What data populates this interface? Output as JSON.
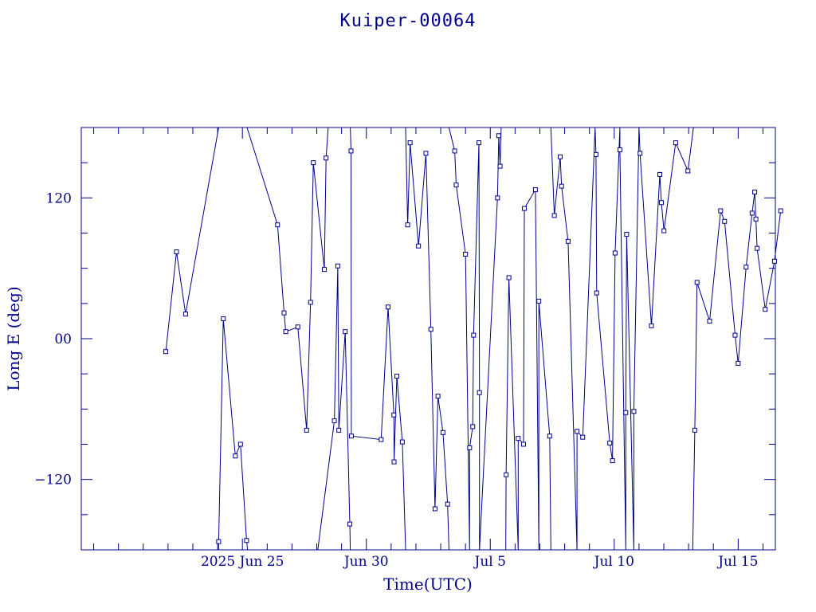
{
  "chart_data": {
    "type": "line",
    "title": "Kuiper-00064",
    "xlabel": "Time(UTC)",
    "ylabel": "Long E (deg)",
    "color": "#00008b",
    "x_unit": "day (2025)",
    "xlim": [
      "2025-06-18T12:00",
      "2025-07-16T12:00"
    ],
    "ylim": [
      -180,
      180
    ],
    "y_ticks": [
      -120,
      0,
      120
    ],
    "y_tick_labels": [
      "−120",
      "00",
      "120"
    ],
    "x_ticks": [
      "2025-06-25",
      "2025-06-30",
      "2025-07-05",
      "2025-07-10",
      "2025-07-15"
    ],
    "x_tick_labels": [
      "2025 Jun 25",
      "Jun 30",
      "Jul  5",
      "Jul 10",
      "Jul 15"
    ],
    "series": [
      {
        "values": [
          [
            "2025-06-21T21:50",
            -11
          ],
          [
            "2025-06-22T08:10",
            74
          ],
          [
            "2025-06-22T17:00",
            21
          ],
          [
            "2025-06-24T01:00",
            180
          ],
          [
            "2025-06-24T01:00",
            -180
          ],
          [
            "2025-06-24T01:00",
            -173
          ],
          [
            "2025-06-24T05:30",
            17
          ],
          [
            "2025-06-24T17:10",
            -100
          ],
          [
            "2025-06-24T22:10",
            -90
          ],
          [
            "2025-06-25T04:00",
            -172
          ],
          [
            "2025-06-25T05:00",
            -180
          ],
          [
            "2025-06-25T04:30",
            180
          ],
          [
            "2025-06-26T10:00",
            97
          ],
          [
            "2025-06-26T16:20",
            22
          ],
          [
            "2025-06-26T18:00",
            6
          ],
          [
            "2025-06-27T05:40",
            10
          ],
          [
            "2025-06-27T14:10",
            -78
          ],
          [
            "2025-06-27T18:00",
            31
          ],
          [
            "2025-06-27T20:40",
            150
          ],
          [
            "2025-06-28T07:20",
            59
          ],
          [
            "2025-06-28T09:00",
            154
          ],
          [
            "2025-06-28T11:00",
            180
          ],
          [
            "2025-06-28T01:00",
            -180
          ],
          [
            "2025-06-28T17:00",
            -70
          ],
          [
            "2025-06-28T20:20",
            62
          ],
          [
            "2025-06-28T21:20",
            -78
          ],
          [
            "2025-06-29T03:30",
            6
          ],
          [
            "2025-06-29T08:00",
            -158
          ],
          [
            "2025-06-29T08:30",
            -180
          ],
          [
            "2025-06-29T08:30",
            180
          ],
          [
            "2025-06-29T09:10",
            160
          ],
          [
            "2025-06-29T09:30",
            -83
          ],
          [
            "2025-06-30T14:20",
            -86
          ],
          [
            "2025-06-30T21:00",
            27
          ],
          [
            "2025-07-01T02:40",
            -65
          ],
          [
            "2025-07-01T02:50",
            -105
          ],
          [
            "2025-07-01T05:30",
            -32
          ],
          [
            "2025-07-01T10:50",
            -88
          ],
          [
            "2025-07-01T14:00",
            -180
          ],
          [
            "2025-07-01T14:00",
            180
          ],
          [
            "2025-07-01T16:00",
            97
          ],
          [
            "2025-07-01T18:20",
            167
          ],
          [
            "2025-07-02T02:30",
            79
          ],
          [
            "2025-07-02T09:40",
            158
          ],
          [
            "2025-07-02T14:30",
            8
          ],
          [
            "2025-07-02T18:30",
            -145
          ],
          [
            "2025-07-02T21:20",
            -49
          ],
          [
            "2025-07-03T02:10",
            -80
          ],
          [
            "2025-07-03T06:40",
            -141
          ],
          [
            "2025-07-03T08:00",
            -180
          ],
          [
            "2025-07-03T08:00",
            180
          ],
          [
            "2025-07-03T13:30",
            160
          ],
          [
            "2025-07-03T15:00",
            131
          ],
          [
            "2025-07-04T00:00",
            72
          ],
          [
            "2025-07-04T04:00",
            -180
          ],
          [
            "2025-07-04T04:00",
            -93
          ],
          [
            "2025-07-04T07:00",
            -75
          ],
          [
            "2025-07-04T07:50",
            3
          ],
          [
            "2025-07-04T13:00",
            167
          ],
          [
            "2025-07-04T13:30",
            -46
          ],
          [
            "2025-07-04T13:30",
            -180
          ],
          [
            "2025-07-05T07:00",
            120
          ],
          [
            "2025-07-05T08:10",
            173
          ],
          [
            "2025-07-05T09:30",
            147
          ],
          [
            "2025-07-05T10:30",
            180
          ],
          [
            "2025-07-05T15:00",
            -180
          ],
          [
            "2025-07-05T15:20",
            -116
          ],
          [
            "2025-07-05T18:00",
            52
          ],
          [
            "2025-07-06T03:00",
            -180
          ],
          [
            "2025-07-06T03:00",
            -85
          ],
          [
            "2025-07-06T08:10",
            -90
          ],
          [
            "2025-07-06T09:00",
            111
          ],
          [
            "2025-07-06T19:40",
            127
          ],
          [
            "2025-07-06T23:00",
            -180
          ],
          [
            "2025-07-06T23:00",
            32
          ],
          [
            "2025-07-07T09:30",
            -83
          ],
          [
            "2025-07-07T10:40",
            -180
          ],
          [
            "2025-07-07T10:40",
            180
          ],
          [
            "2025-07-07T14:00",
            105
          ],
          [
            "2025-07-07T19:40",
            155
          ],
          [
            "2025-07-07T21:00",
            130
          ],
          [
            "2025-07-08T03:20",
            83
          ],
          [
            "2025-07-08T12:00",
            -180
          ],
          [
            "2025-07-08T12:00",
            -79
          ],
          [
            "2025-07-08T17:30",
            -84
          ],
          [
            "2025-07-09T05:30",
            180
          ],
          [
            "2025-07-09T06:20",
            157
          ],
          [
            "2025-07-09T07:00",
            39
          ],
          [
            "2025-07-09T19:40",
            -89
          ],
          [
            "2025-07-09T22:20",
            -104
          ],
          [
            "2025-07-10T00:50",
            73
          ],
          [
            "2025-07-10T05:30",
            180
          ],
          [
            "2025-07-10T05:30",
            161
          ],
          [
            "2025-07-10T11:10",
            -180
          ],
          [
            "2025-07-10T11:10",
            -63
          ],
          [
            "2025-07-10T12:00",
            89
          ],
          [
            "2025-07-10T19:00",
            -180
          ],
          [
            "2025-07-10T19:00",
            -62
          ],
          [
            "2025-07-11T00:00",
            180
          ],
          [
            "2025-07-11T01:00",
            158
          ],
          [
            "2025-07-11T12:00",
            11
          ],
          [
            "2025-07-11T20:10",
            140
          ],
          [
            "2025-07-11T21:40",
            116
          ],
          [
            "2025-07-12T00:10",
            92
          ],
          [
            "2025-07-12T11:30",
            167
          ],
          [
            "2025-07-12T23:20",
            143
          ],
          [
            "2025-07-13T04:40",
            180
          ],
          [
            "2025-07-13T04:00",
            -180
          ],
          [
            "2025-07-13T06:00",
            -78
          ],
          [
            "2025-07-13T08:10",
            48
          ],
          [
            "2025-07-13T20:20",
            15
          ],
          [
            "2025-07-14T07:00",
            109
          ],
          [
            "2025-07-14T10:50",
            100
          ],
          [
            "2025-07-14T21:00",
            3
          ],
          [
            "2025-07-15T00:00",
            -21
          ],
          [
            "2025-07-15T07:40",
            61
          ],
          [
            "2025-07-15T13:30",
            107
          ],
          [
            "2025-07-15T16:00",
            125
          ],
          [
            "2025-07-15T17:10",
            102
          ],
          [
            "2025-07-15T18:20",
            77
          ],
          [
            "2025-07-16T02:10",
            25
          ],
          [
            "2025-07-16T11:10",
            66
          ],
          [
            "2025-07-16T17:10",
            109
          ]
        ]
      }
    ]
  }
}
